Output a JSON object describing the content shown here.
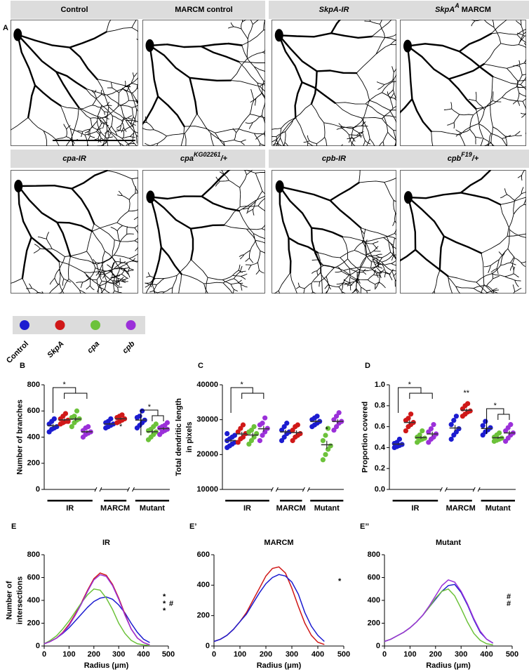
{
  "panel_a": {
    "label": "A",
    "images": [
      {
        "title": [
          {
            "text": "Control"
          }
        ]
      },
      {
        "title": [
          {
            "text": "MARCM control"
          }
        ]
      },
      {
        "title": [
          {
            "text": "SkpA-IR",
            "italic": true
          }
        ]
      },
      {
        "title": [
          {
            "text": "SkpA",
            "italic": true
          },
          {
            "text": "A",
            "italic": true,
            "sup": true
          },
          {
            "text": " MARCM"
          }
        ]
      },
      {
        "title": [
          {
            "text": "cpa-IR",
            "italic": true
          }
        ]
      },
      {
        "title": [
          {
            "text": "cpa",
            "italic": true
          },
          {
            "text": "KG02261",
            "italic": true,
            "sup": true
          },
          {
            "text": "/+",
            "italic": true
          }
        ]
      },
      {
        "title": [
          {
            "text": "cpb-IR",
            "italic": true
          }
        ]
      },
      {
        "title": [
          {
            "text": "cpb",
            "italic": true
          },
          {
            "text": "F19",
            "italic": true,
            "sup": true
          },
          {
            "text": "/+",
            "italic": true
          }
        ]
      }
    ]
  },
  "legend": [
    {
      "name": "Control",
      "color": "#1c1cd0",
      "italic": false
    },
    {
      "name": "SkpA",
      "color": "#d01818",
      "italic": true
    },
    {
      "name": "cpa",
      "color": "#6cc23a",
      "italic": true
    },
    {
      "name": "cpb",
      "color": "#9b30d9",
      "italic": true
    }
  ],
  "chart_data": [
    {
      "type": "dot",
      "label": "B",
      "ylabel": [
        "Number of branches"
      ],
      "ylim": [
        0,
        800
      ],
      "yticks": [
        0,
        200,
        400,
        600,
        800
      ],
      "annotations": [
        "*",
        "*",
        "*"
      ],
      "groups": [
        {
          "label": "IR",
          "series": [
            {
              "color": "#1c1cd0",
              "values": [
                440,
                460,
                470,
                480,
                500,
                520,
                540
              ],
              "mean": 487,
              "error": 13
            },
            {
              "color": "#d01818",
              "values": [
                500,
                510,
                520,
                530,
                540,
                560,
                580,
                520
              ],
              "mean": 532,
              "error": 9
            },
            {
              "color": "#6cc23a",
              "values": [
                480,
                510,
                530,
                540,
                550,
                560,
                600
              ],
              "mean": 538,
              "error": 14
            },
            {
              "color": "#9b30d9",
              "values": [
                400,
                420,
                430,
                440,
                450,
                470,
                480
              ],
              "mean": 441,
              "error": 10
            }
          ]
        },
        {
          "label": "MARCM",
          "series": [
            {
              "color": "#1c1cd0",
              "values": [
                470,
                480,
                490,
                500,
                510,
                520,
                540
              ],
              "mean": 501,
              "error": 9
            },
            {
              "color": "#d01818",
              "values": [
                510,
                520,
                530,
                540,
                550,
                560,
                570
              ],
              "mean": 540,
              "error": 8
            }
          ]
        },
        {
          "label": "Mutant",
          "series": [
            {
              "color": "#1c1cd0",
              "values": [
                470,
                490,
                510,
                530,
                550,
                560,
                600
              ],
              "mean": 530,
              "error": 16
            },
            {
              "color": "#6cc23a",
              "values": [
                380,
                400,
                420,
                440,
                450,
                460,
                480,
                500
              ],
              "mean": 441,
              "error": 14
            },
            {
              "color": "#9b30d9",
              "values": [
                420,
                440,
                450,
                460,
                470,
                480,
                490,
                510
              ],
              "mean": 465,
              "error": 10
            }
          ]
        }
      ]
    },
    {
      "type": "dot",
      "label": "C",
      "ylabel": [
        "Total dendritic length",
        "in pixels"
      ],
      "ylim": [
        10000,
        40000
      ],
      "yticks": [
        10000,
        20000,
        30000,
        40000
      ],
      "annotations": [
        "*",
        "*"
      ],
      "groups": [
        {
          "label": "IR",
          "series": [
            {
              "color": "#1c1cd0",
              "values": [
                22000,
                22500,
                23000,
                23500,
                24000,
                24500,
                25000,
                25500,
                26000
              ],
              "mean": 24000,
              "error": 450
            },
            {
              "color": "#d01818",
              "values": [
                23500,
                24500,
                25000,
                26000,
                26500,
                27500,
                28500
              ],
              "mean": 25900,
              "error": 650
            },
            {
              "color": "#6cc23a",
              "values": [
                23000,
                24000,
                25000,
                26000,
                26500,
                27000,
                28000
              ],
              "mean": 25600,
              "error": 620
            },
            {
              "color": "#9b30d9",
              "values": [
                24000,
                25500,
                26500,
                27500,
                28500,
                29000,
                30500
              ],
              "mean": 27400,
              "error": 800
            }
          ]
        },
        {
          "label": "MARCM",
          "series": [
            {
              "color": "#1c1cd0",
              "values": [
                24000,
                25000,
                26000,
                26500,
                27000,
                28000,
                29000
              ],
              "mean": 26500,
              "error": 620
            },
            {
              "color": "#d01818",
              "values": [
                24000,
                25000,
                25500,
                26000,
                27000,
                28000,
                28500
              ],
              "mean": 26300,
              "error": 630
            }
          ]
        },
        {
          "label": "Mutant",
          "series": [
            {
              "color": "#1c1cd0",
              "values": [
                28000,
                28500,
                29000,
                29500,
                30000,
                30500,
                31000
              ],
              "mean": 29500,
              "error": 400
            },
            {
              "color": "#6cc23a",
              "values": [
                18500,
                20000,
                21500,
                22500,
                24000,
                25500,
                27500
              ],
              "mean": 22800,
              "error": 1150
            },
            {
              "color": "#9b30d9",
              "values": [
                27000,
                28000,
                29000,
                29500,
                30000,
                31000,
                32000
              ],
              "mean": 29500,
              "error": 620
            }
          ]
        }
      ]
    },
    {
      "type": "dot",
      "label": "D",
      "ylabel": [
        "Proportion covered"
      ],
      "ylim": [
        0,
        1
      ],
      "yticks": [
        {
          "value": 0,
          "label": "0.0"
        },
        0.2,
        0.4,
        0.6,
        0.8,
        {
          "value": 1,
          "label": "1.0"
        }
      ],
      "annotations": [
        "*",
        "**",
        "*"
      ],
      "groups": [
        {
          "label": "IR",
          "series": [
            {
              "color": "#1c1cd0",
              "values": [
                0.4,
                0.41,
                0.42,
                0.43,
                0.44,
                0.45,
                0.48
              ],
              "mean": 0.433,
              "error": 0.01
            },
            {
              "color": "#d01818",
              "values": [
                0.56,
                0.6,
                0.62,
                0.64,
                0.66,
                0.68,
                0.72
              ],
              "mean": 0.64,
              "error": 0.02
            },
            {
              "color": "#6cc23a",
              "values": [
                0.45,
                0.47,
                0.48,
                0.49,
                0.5,
                0.52,
                0.56
              ],
              "mean": 0.496,
              "error": 0.013
            },
            {
              "color": "#9b30d9",
              "values": [
                0.45,
                0.48,
                0.5,
                0.53,
                0.55,
                0.58,
                0.62
              ],
              "mean": 0.53,
              "error": 0.022
            }
          ]
        },
        {
          "label": "MARCM",
          "series": [
            {
              "color": "#1c1cd0",
              "values": [
                0.48,
                0.52,
                0.55,
                0.58,
                0.62,
                0.66,
                0.7
              ],
              "mean": 0.587,
              "error": 0.029
            },
            {
              "color": "#d01818",
              "values": [
                0.7,
                0.72,
                0.74,
                0.75,
                0.77,
                0.8,
                0.82
              ],
              "mean": 0.757,
              "error": 0.016
            }
          ]
        },
        {
          "label": "Mutant",
          "series": [
            {
              "color": "#1c1cd0",
              "values": [
                0.52,
                0.55,
                0.57,
                0.59,
                0.61,
                0.65
              ],
              "mean": 0.582,
              "error": 0.019
            },
            {
              "color": "#6cc23a",
              "values": [
                0.46,
                0.47,
                0.48,
                0.49,
                0.5,
                0.52,
                0.54
              ],
              "mean": 0.494,
              "error": 0.01
            },
            {
              "color": "#9b30d9",
              "values": [
                0.46,
                0.49,
                0.52,
                0.54,
                0.56,
                0.59,
                0.62
              ],
              "mean": 0.54,
              "error": 0.02
            }
          ]
        }
      ]
    },
    {
      "type": "line",
      "label": "E",
      "title": "IR",
      "ylabel": [
        "Number of",
        "intersections"
      ],
      "xlabel": "Radius (μm)",
      "xlim": [
        0,
        500
      ],
      "xticks": [
        0,
        100,
        200,
        300,
        400,
        500
      ],
      "ylim": [
        0,
        800
      ],
      "yticks": [
        0,
        200,
        400,
        600,
        800
      ],
      "x": [
        0,
        25,
        50,
        75,
        100,
        125,
        150,
        175,
        200,
        225,
        250,
        275,
        300,
        325,
        350,
        375,
        400,
        425
      ],
      "series": [
        {
          "color": "#1c1cd0",
          "values": [
            20,
            40,
            70,
            110,
            160,
            220,
            280,
            340,
            390,
            420,
            430,
            410,
            360,
            290,
            200,
            120,
            60,
            30
          ]
        },
        {
          "color": "#d01818",
          "values": [
            20,
            40,
            70,
            120,
            190,
            280,
            380,
            490,
            590,
            640,
            620,
            540,
            420,
            280,
            150,
            70,
            30,
            10
          ]
        },
        {
          "color": "#6cc23a",
          "values": [
            20,
            50,
            90,
            150,
            220,
            300,
            380,
            450,
            500,
            490,
            420,
            320,
            200,
            110,
            50,
            20,
            10,
            5
          ]
        },
        {
          "color": "#9b30d9",
          "values": [
            20,
            40,
            70,
            115,
            180,
            270,
            370,
            480,
            580,
            625,
            610,
            530,
            410,
            270,
            150,
            70,
            30,
            10
          ]
        }
      ],
      "annotations": [
        {
          "text": "*",
          "color": "#d01818"
        },
        {
          "text": "*",
          "color": "#6cc23a"
        },
        {
          "text": "#",
          "color": "#6cc23a"
        },
        {
          "text": "*",
          "color": "#9b30d9"
        }
      ]
    },
    {
      "type": "line",
      "label": "E’",
      "title": "MARCM",
      "ylabel": [],
      "xlabel": "Radius (μm)",
      "xlim": [
        0,
        500
      ],
      "xticks": [
        0,
        100,
        200,
        300,
        400,
        500
      ],
      "ylim": [
        0,
        600
      ],
      "yticks": [
        0,
        200,
        400,
        600
      ],
      "x": [
        0,
        25,
        50,
        75,
        100,
        125,
        150,
        175,
        200,
        225,
        250,
        275,
        300,
        325,
        350,
        375,
        400,
        425
      ],
      "series": [
        {
          "color": "#d01818",
          "values": [
            30,
            45,
            70,
            110,
            160,
            220,
            300,
            380,
            460,
            510,
            520,
            480,
            380,
            260,
            150,
            70,
            25,
            10
          ]
        },
        {
          "color": "#1c1cd0",
          "values": [
            30,
            45,
            70,
            110,
            160,
            210,
            280,
            350,
            410,
            450,
            470,
            460,
            420,
            340,
            220,
            130,
            70,
            30
          ]
        }
      ],
      "annotations": [
        {
          "text": "*",
          "color": "#d01818"
        }
      ]
    },
    {
      "type": "line",
      "label": "E’’",
      "title": "Mutant",
      "ylabel": [],
      "xlabel": "Radius (μm)",
      "xlim": [
        0,
        500
      ],
      "xticks": [
        0,
        100,
        200,
        300,
        400,
        500
      ],
      "ylim": [
        0,
        800
      ],
      "yticks": [
        0,
        200,
        400,
        600,
        800
      ],
      "x": [
        0,
        25,
        50,
        75,
        100,
        125,
        150,
        175,
        200,
        225,
        250,
        275,
        300,
        325,
        350,
        375,
        400,
        425
      ],
      "series": [
        {
          "color": "#1c1cd0",
          "values": [
            40,
            60,
            90,
            120,
            160,
            210,
            270,
            340,
            410,
            480,
            530,
            540,
            470,
            360,
            230,
            120,
            60,
            25
          ]
        },
        {
          "color": "#6cc23a",
          "values": [
            40,
            60,
            90,
            120,
            160,
            210,
            270,
            340,
            420,
            480,
            500,
            440,
            330,
            210,
            110,
            50,
            20,
            10
          ]
        },
        {
          "color": "#9b30d9",
          "values": [
            40,
            60,
            90,
            120,
            160,
            210,
            270,
            350,
            440,
            530,
            580,
            560,
            480,
            370,
            240,
            130,
            60,
            25
          ]
        }
      ],
      "annotations": [
        {
          "text": "#",
          "color": "#6cc23a"
        },
        {
          "text": "#",
          "color": "#9b30d9"
        }
      ]
    }
  ]
}
